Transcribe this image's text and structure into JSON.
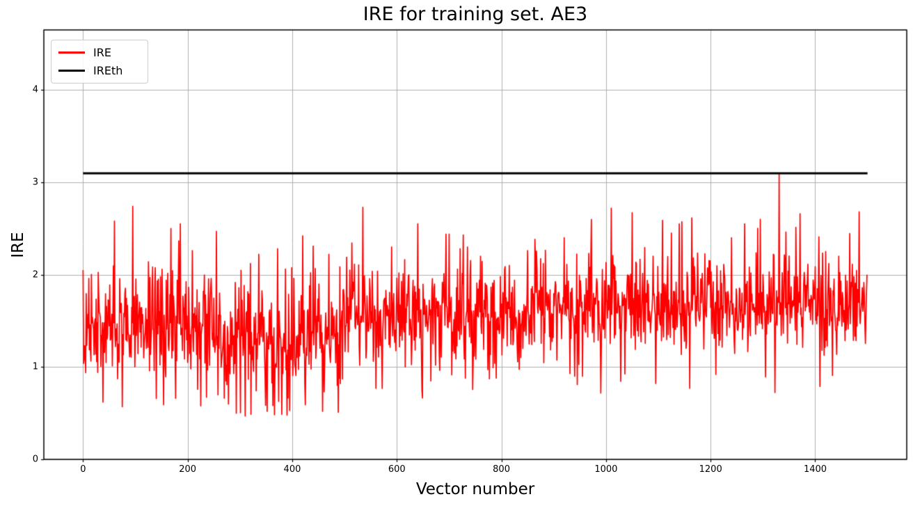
{
  "chart_data": {
    "type": "line",
    "title": "IRE for training set. AE3",
    "xlabel": "Vector number",
    "ylabel": "IRE",
    "xlim": [
      -75,
      1575
    ],
    "ylim": [
      0,
      4.65
    ],
    "xticks": [
      0,
      200,
      400,
      600,
      800,
      1000,
      1200,
      1400
    ],
    "yticks": [
      0,
      1,
      2,
      3,
      4
    ],
    "grid": true,
    "grid_color": "#b0b0b0",
    "background": "#ffffff",
    "spine_color": "#000000",
    "legend": {
      "position": "upper-left",
      "entries": [
        {
          "label": "IRE",
          "color": "#ff0000"
        },
        {
          "label": "IREth",
          "color": "#000000"
        }
      ]
    },
    "series": [
      {
        "name": "IRE",
        "kind": "noisy-line",
        "color": "#ff0000",
        "linewidth": 1.7,
        "n": 1500,
        "seed": 1337,
        "segments": [
          {
            "from": 0,
            "to": 250,
            "mean": 1.43,
            "std": 0.3,
            "floor": 0.6,
            "ceil": 2.12
          },
          {
            "from": 250,
            "to": 500,
            "mean": 1.32,
            "std": 0.32,
            "floor": 0.5,
            "ceil": 2.05
          },
          {
            "from": 500,
            "to": 900,
            "mean": 1.57,
            "std": 0.27,
            "floor": 0.8,
            "ceil": 2.15
          },
          {
            "from": 900,
            "to": 1500,
            "mean": 1.65,
            "std": 0.27,
            "floor": 0.85,
            "ceil": 2.2
          }
        ],
        "spikes": {
          "prob": 0.028,
          "min": 0.35,
          "max": 1.0,
          "cap": 2.74
        },
        "dips": {
          "prob": 0.012,
          "depth": 0.18
        },
        "anchors": [
          [
            0,
            2.05
          ],
          [
            38,
            0.62
          ],
          [
            60,
            2.58
          ],
          [
            75,
            0.57
          ],
          [
            95,
            2.74
          ],
          [
            128,
            1.97
          ],
          [
            140,
            0.66
          ],
          [
            168,
            2.5
          ],
          [
            186,
            2.55
          ],
          [
            225,
            0.58
          ],
          [
            255,
            2.47
          ],
          [
            278,
            0.6
          ],
          [
            310,
            0.47
          ],
          [
            336,
            2.22
          ],
          [
            352,
            0.52
          ],
          [
            372,
            2.28
          ],
          [
            395,
            0.53
          ],
          [
            420,
            2.42
          ],
          [
            440,
            2.31
          ],
          [
            458,
            0.52
          ],
          [
            470,
            2.22
          ],
          [
            488,
            0.51
          ],
          [
            510,
            2.05
          ],
          [
            535,
            2.73
          ],
          [
            560,
            0.77
          ],
          [
            590,
            2.3
          ],
          [
            640,
            2.55
          ],
          [
            665,
            0.85
          ],
          [
            700,
            2.44
          ],
          [
            735,
            2.3
          ],
          [
            760,
            2.2
          ],
          [
            790,
            0.88
          ],
          [
            815,
            2.1
          ],
          [
            850,
            2.26
          ],
          [
            880,
            2.12
          ],
          [
            920,
            2.4
          ],
          [
            955,
            0.9
          ],
          [
            1010,
            2.72
          ],
          [
            1050,
            2.67
          ],
          [
            1090,
            2.2
          ],
          [
            1125,
            2.45
          ],
          [
            1140,
            2.55
          ],
          [
            1160,
            0.77
          ],
          [
            1210,
            0.92
          ],
          [
            1240,
            2.4
          ],
          [
            1265,
            2.55
          ],
          [
            1295,
            2.6
          ],
          [
            1331,
            3.09
          ],
          [
            1371,
            2.66
          ],
          [
            1409,
            0.79
          ],
          [
            1420,
            2.25
          ],
          [
            1445,
            2.2
          ],
          [
            1484,
            2.68
          ],
          [
            1499,
            2.0
          ]
        ]
      },
      {
        "name": "IREth",
        "kind": "hline",
        "color": "#000000",
        "linewidth": 3,
        "y": 3.1,
        "x_start": 0,
        "x_end": 1500
      }
    ]
  }
}
